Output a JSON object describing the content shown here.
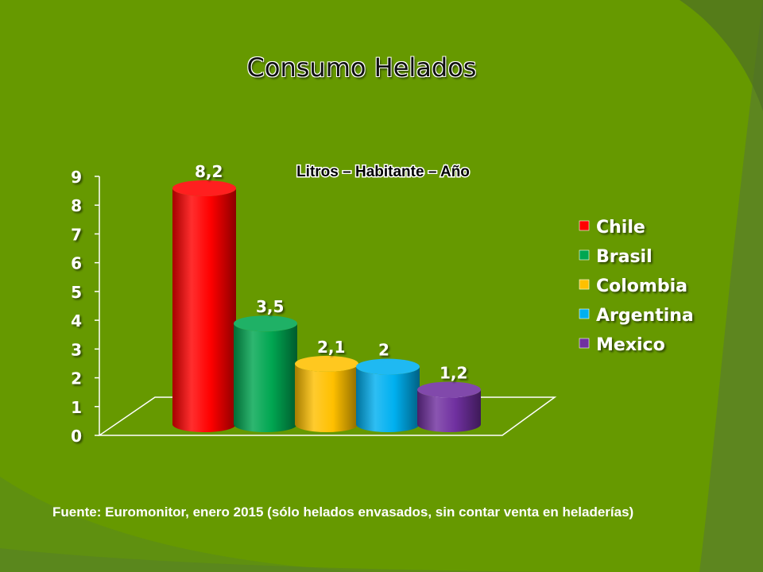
{
  "slide": {
    "title": "Consumo Helados",
    "source": "Fuente: Euromonitor, enero 2015 (sólo helados envasados, sin contar venta en heladerías)"
  },
  "chart_data": {
    "type": "bar",
    "subtitle": "Litros – Habitante – Año",
    "categories": [
      "Chile",
      "Brasil",
      "Colombia",
      "Argentina",
      "Mexico"
    ],
    "values": [
      8.2,
      3.5,
      2.1,
      2,
      1.2
    ],
    "data_labels": [
      "8,2",
      "3,5",
      "2,1",
      "2",
      "1,2"
    ],
    "colors": [
      "#ff0000",
      "#00a651",
      "#ffc000",
      "#00b0f0",
      "#7030a0"
    ],
    "ylim": [
      0,
      9
    ],
    "yticks": [
      "0",
      "1",
      "2",
      "3",
      "4",
      "5",
      "6",
      "7",
      "8",
      "9"
    ],
    "legend_position": "right",
    "style": "3d-cylinder"
  }
}
